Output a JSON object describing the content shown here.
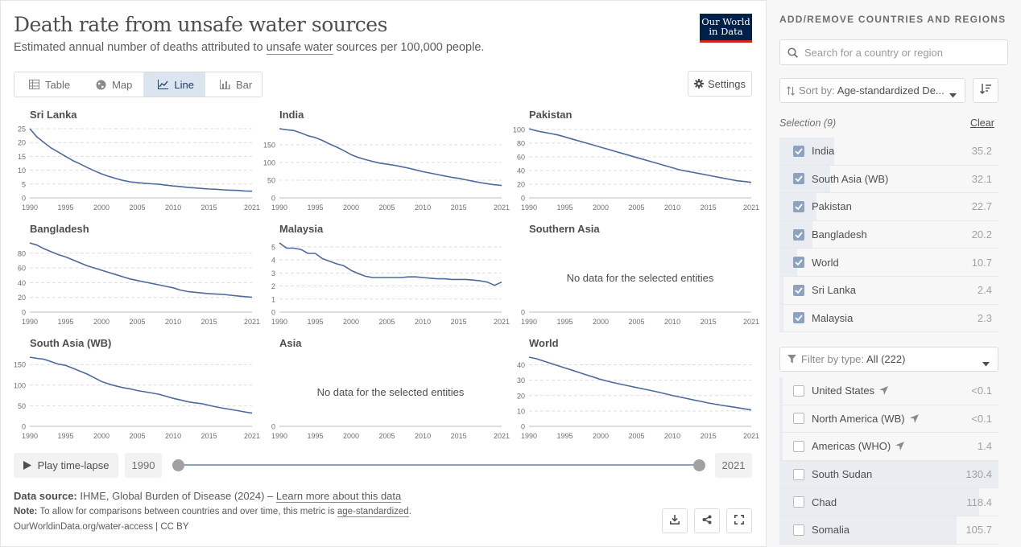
{
  "header": {
    "title": "Death rate from unsafe water sources",
    "subtitle_pre": "Estimated annual number of deaths attributed to ",
    "subtitle_link": "unsafe water",
    "subtitle_post": " sources per 100,000 people.",
    "logo_line1": "Our World",
    "logo_line2": "in Data"
  },
  "tabs": [
    {
      "label": "Table",
      "icon": "table-icon",
      "active": false
    },
    {
      "label": "Map",
      "icon": "globe-icon",
      "active": false
    },
    {
      "label": "Line",
      "icon": "line-chart-icon",
      "active": true
    },
    {
      "label": "Bar",
      "icon": "bar-chart-icon",
      "active": false
    }
  ],
  "settings_label": "Settings",
  "no_data_text": "No data for the selected entities",
  "colors": {
    "line": "#4c6a9c",
    "accent_dark": "#002147",
    "accent_red": "#ce261e",
    "selection_bar": "#e9edf2",
    "checkbox": "#8da2be"
  },
  "chart_data": [
    {
      "type": "line",
      "title": "Sri Lanka",
      "x": [
        1990,
        1991,
        1992,
        1993,
        1994,
        1995,
        1996,
        1997,
        1998,
        1999,
        2000,
        2001,
        2002,
        2003,
        2004,
        2005,
        2006,
        2007,
        2008,
        2009,
        2010,
        2011,
        2012,
        2013,
        2014,
        2015,
        2016,
        2017,
        2018,
        2019,
        2020,
        2021
      ],
      "y": [
        25,
        22,
        20,
        18,
        16.5,
        15,
        13.5,
        12.3,
        11,
        9.8,
        8.7,
        7.8,
        7,
        6.3,
        5.8,
        5.5,
        5.3,
        5.1,
        4.9,
        4.6,
        4.3,
        4.1,
        3.8,
        3.6,
        3.4,
        3.2,
        3.1,
        2.9,
        2.8,
        2.7,
        2.5,
        2.4
      ],
      "yticks": [
        0,
        5,
        10,
        15,
        20,
        25
      ],
      "ylim": [
        0,
        25
      ],
      "xticks": [
        1990,
        1995,
        2000,
        2005,
        2010,
        2015,
        2021
      ]
    },
    {
      "type": "line",
      "title": "India",
      "x": [
        1990,
        1991,
        1992,
        1993,
        1994,
        1995,
        1996,
        1997,
        1998,
        1999,
        2000,
        2001,
        2002,
        2003,
        2004,
        2005,
        2006,
        2007,
        2008,
        2009,
        2010,
        2011,
        2012,
        2013,
        2014,
        2015,
        2016,
        2017,
        2018,
        2019,
        2020,
        2021
      ],
      "y": [
        195,
        192,
        190,
        183,
        175,
        170,
        162,
        152,
        143,
        133,
        122,
        114,
        108,
        103,
        98,
        95,
        92,
        88,
        84,
        79,
        74,
        70,
        66,
        62,
        58,
        55,
        51,
        47,
        43,
        40,
        37,
        35.2
      ],
      "yticks": [
        0,
        50,
        100,
        150
      ],
      "ylim": [
        0,
        195
      ],
      "xticks": [
        1990,
        1995,
        2000,
        2005,
        2010,
        2015,
        2021
      ]
    },
    {
      "type": "line",
      "title": "Pakistan",
      "x": [
        1990,
        1991,
        1992,
        1993,
        1994,
        1995,
        1996,
        1997,
        1998,
        1999,
        2000,
        2001,
        2002,
        2003,
        2004,
        2005,
        2006,
        2007,
        2008,
        2009,
        2010,
        2011,
        2012,
        2013,
        2014,
        2015,
        2016,
        2017,
        2018,
        2019,
        2020,
        2021
      ],
      "y": [
        101,
        98,
        96,
        94,
        92,
        89,
        86,
        83,
        80,
        77,
        74,
        71,
        68,
        65,
        62,
        59,
        56,
        53,
        50,
        47,
        44,
        41,
        39,
        37,
        35,
        33,
        31,
        29,
        27,
        25,
        24,
        22.7
      ],
      "yticks": [
        0,
        20,
        40,
        60,
        80,
        100
      ],
      "ylim": [
        0,
        101
      ],
      "xticks": [
        1990,
        1995,
        2000,
        2005,
        2010,
        2015,
        2021
      ]
    },
    {
      "type": "line",
      "title": "Bangladesh",
      "x": [
        1990,
        1991,
        1992,
        1993,
        1994,
        1995,
        1996,
        1997,
        1998,
        1999,
        2000,
        2001,
        2002,
        2003,
        2004,
        2005,
        2006,
        2007,
        2008,
        2009,
        2010,
        2011,
        2012,
        2013,
        2014,
        2015,
        2016,
        2017,
        2018,
        2019,
        2020,
        2021
      ],
      "y": [
        94,
        91,
        86,
        82,
        78,
        75,
        71,
        67,
        63,
        60,
        57,
        54,
        51,
        48,
        45,
        43,
        41,
        39,
        37,
        35,
        33,
        30,
        28,
        27,
        26,
        25,
        24.5,
        24,
        23,
        22,
        21,
        20.2
      ],
      "yticks": [
        0,
        20,
        40,
        60,
        80
      ],
      "ylim": [
        0,
        94
      ],
      "xticks": [
        1990,
        1995,
        2000,
        2005,
        2010,
        2015,
        2021
      ]
    },
    {
      "type": "line",
      "title": "Malaysia",
      "x": [
        1990,
        1991,
        1992,
        1993,
        1994,
        1995,
        1996,
        1997,
        1998,
        1999,
        2000,
        2001,
        2002,
        2003,
        2004,
        2005,
        2006,
        2007,
        2008,
        2009,
        2010,
        2011,
        2012,
        2013,
        2014,
        2015,
        2016,
        2017,
        2018,
        2019,
        2020,
        2021
      ],
      "y": [
        5.3,
        4.9,
        4.9,
        4.8,
        4.5,
        4.5,
        4.1,
        3.9,
        3.7,
        3.55,
        3.2,
        2.95,
        2.75,
        2.65,
        2.65,
        2.65,
        2.65,
        2.65,
        2.7,
        2.7,
        2.65,
        2.6,
        2.55,
        2.55,
        2.5,
        2.5,
        2.5,
        2.45,
        2.4,
        2.3,
        2.05,
        2.3
      ],
      "yticks": [
        0,
        1,
        2,
        3,
        4,
        5
      ],
      "ylim": [
        0,
        5.3
      ],
      "xticks": [
        1990,
        1995,
        2000,
        2005,
        2010,
        2015,
        2021
      ]
    },
    {
      "type": "line",
      "title": "Southern Asia",
      "x": [],
      "y": [],
      "yticks": [
        0
      ],
      "ylim": [
        0,
        1
      ],
      "xticks": [
        1990,
        1995,
        2000,
        2005,
        2010,
        2015,
        2021
      ],
      "no_data": true
    },
    {
      "type": "line",
      "title": "South Asia (WB)",
      "x": [
        1990,
        1991,
        1992,
        1993,
        1994,
        1995,
        1996,
        1997,
        1998,
        1999,
        2000,
        2001,
        2002,
        2003,
        2004,
        2005,
        2006,
        2007,
        2008,
        2009,
        2010,
        2011,
        2012,
        2013,
        2014,
        2015,
        2016,
        2017,
        2018,
        2019,
        2020,
        2021
      ],
      "y": [
        168,
        165,
        163,
        157,
        151,
        148,
        141,
        134,
        127,
        118,
        109,
        103,
        98,
        94,
        91,
        87,
        84,
        81,
        78,
        73,
        68,
        64,
        60,
        57,
        55,
        51,
        47,
        44,
        41,
        38,
        35,
        32.1
      ],
      "yticks": [
        0,
        50,
        100,
        150
      ],
      "ylim": [
        0,
        168
      ],
      "xticks": [
        1990,
        1995,
        2000,
        2005,
        2010,
        2015,
        2021
      ]
    },
    {
      "type": "line",
      "title": "Asia",
      "x": [],
      "y": [],
      "yticks": [
        0
      ],
      "ylim": [
        0,
        1
      ],
      "xticks": [
        1990,
        1995,
        2000,
        2005,
        2010,
        2015,
        2021
      ],
      "no_data": true
    },
    {
      "type": "line",
      "title": "World",
      "x": [
        1990,
        1991,
        1992,
        1993,
        1994,
        1995,
        1996,
        1997,
        1998,
        1999,
        2000,
        2001,
        2002,
        2003,
        2004,
        2005,
        2006,
        2007,
        2008,
        2009,
        2010,
        2011,
        2012,
        2013,
        2014,
        2015,
        2016,
        2017,
        2018,
        2019,
        2020,
        2021
      ],
      "y": [
        45,
        44,
        42.5,
        41,
        39.5,
        38,
        36.5,
        35,
        33.5,
        32,
        30.5,
        29.3,
        28.2,
        27.2,
        26.2,
        25.2,
        24.3,
        23.3,
        22.3,
        21.2,
        20.1,
        19.1,
        18.1,
        17.1,
        16.2,
        15.2,
        14.4,
        13.6,
        12.9,
        12.2,
        11.4,
        10.7
      ],
      "yticks": [
        0,
        10,
        20,
        30,
        40
      ],
      "ylim": [
        0,
        45
      ],
      "xticks": [
        1990,
        1995,
        2000,
        2005,
        2010,
        2015,
        2021
      ]
    }
  ],
  "timeline": {
    "play_label": "Play time-lapse",
    "start_year": "1990",
    "end_year": "2021"
  },
  "footer": {
    "source_label": "Data source:",
    "source_text": " IHME, Global Burden of Disease (2024) – ",
    "learn_more": "Learn more about this data",
    "note_label": "Note:",
    "note_text": " To allow for comparisons between countries and over time, this metric is ",
    "note_link": "age-standardized",
    "note_end": ".",
    "url": "OurWorldinData.org/water-access | CC BY"
  },
  "sidebar": {
    "title": "ADD/REMOVE COUNTRIES AND REGIONS",
    "search_placeholder": "Search for a country or region",
    "sort_label": "Sort by:",
    "sort_value": "Age-standardized De...",
    "selection_label": "Selection (9)",
    "clear_label": "Clear",
    "selected": [
      {
        "name": "India",
        "value": "35.2",
        "share": 0.25
      },
      {
        "name": "South Asia (WB)",
        "value": "32.1",
        "share": 0.23
      },
      {
        "name": "Pakistan",
        "value": "22.7",
        "share": 0.17
      },
      {
        "name": "Bangladesh",
        "value": "20.2",
        "share": 0.15
      },
      {
        "name": "World",
        "value": "10.7",
        "share": 0.08
      },
      {
        "name": "Sri Lanka",
        "value": "2.4",
        "share": 0.02
      },
      {
        "name": "Malaysia",
        "value": "2.3",
        "share": 0.02
      }
    ],
    "filter_label": "Filter by type:",
    "filter_value": "All (222)",
    "unselected": [
      {
        "name": "United States",
        "value": "<0.1",
        "share": 0,
        "located": true
      },
      {
        "name": "North America (WB)",
        "value": "<0.1",
        "share": 0,
        "located": true
      },
      {
        "name": "Americas (WHO)",
        "value": "1.4",
        "share": 0.01,
        "located": true
      },
      {
        "name": "South Sudan",
        "value": "130.4",
        "share": 1.0,
        "located": false
      },
      {
        "name": "Chad",
        "value": "118.4",
        "share": 0.91,
        "located": false
      },
      {
        "name": "Somalia",
        "value": "105.7",
        "share": 0.81,
        "located": false
      }
    ]
  }
}
